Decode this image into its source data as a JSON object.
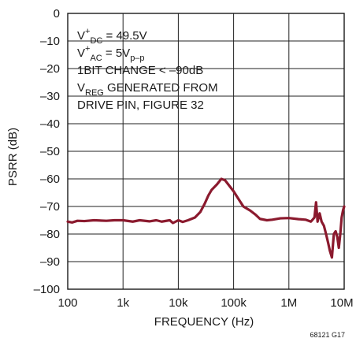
{
  "chart_data": {
    "type": "line",
    "xlabel": "FREQUENCY (Hz)",
    "ylabel": "PSRR (dB)",
    "xscale": "log",
    "xlim": [
      100,
      10000000
    ],
    "ylim": [
      -100,
      0
    ],
    "xticks": [
      100,
      1000,
      10000,
      100000,
      1000000,
      10000000
    ],
    "xtick_labels": [
      "100",
      "1k",
      "10k",
      "100k",
      "1M",
      "10M"
    ],
    "yticks": [
      0,
      -10,
      -20,
      -30,
      -40,
      -50,
      -60,
      -70,
      -80,
      -90,
      -100
    ],
    "ytick_labels": [
      "0",
      "–10",
      "–20",
      "–30",
      "–40",
      "–50",
      "–60",
      "–70",
      "–80",
      "–90",
      "–100"
    ],
    "grid": true,
    "line_color": "#8b1a2e",
    "annotation": {
      "line1": {
        "pre": "V",
        "sup": "+",
        "sub": "DC",
        "post": " = 49.5V"
      },
      "line2": {
        "pre": "V",
        "sup": "+",
        "sub": "AC",
        "post": " = 5V",
        "sub2": "p–p"
      },
      "line3": "1BIT CHANGE < –90dB",
      "line4": {
        "pre": "V",
        "sub": "REG",
        "post": " GENERATED FROM"
      },
      "line5": "DRIVE PIN, FIGURE 32"
    },
    "figure_id": "68121 G17",
    "series": [
      {
        "x": [
          100,
          120,
          150,
          200,
          300,
          500,
          700,
          1000,
          1500,
          2000,
          3000,
          4000,
          5000,
          7000,
          8000,
          10000,
          12000,
          15000,
          20000,
          25000,
          30000,
          35000,
          40000,
          50000,
          60000,
          70000,
          80000,
          100000,
          120000,
          150000,
          200000,
          250000,
          300000,
          400000,
          500000,
          700000,
          1000000,
          1500000,
          2000000,
          2500000,
          2900000,
          3100000,
          3300000,
          3600000,
          3900000,
          4300000,
          4700000,
          5100000,
          5500000,
          6000000,
          6500000,
          7000000,
          7500000,
          8000000,
          8500000,
          9000000,
          9500000,
          10000000
        ],
        "y": [
          -75.5,
          -75.8,
          -75.2,
          -75.3,
          -75.0,
          -75.2,
          -75.0,
          -75.0,
          -75.5,
          -75.0,
          -75.4,
          -75.0,
          -75.5,
          -75.0,
          -76.0,
          -75.0,
          -75.6,
          -75.0,
          -74.0,
          -72.0,
          -69.0,
          -66.0,
          -64.0,
          -62.0,
          -60.0,
          -60.5,
          -62.0,
          -64.5,
          -67.0,
          -70.0,
          -71.5,
          -73.0,
          -74.5,
          -75.0,
          -74.8,
          -74.3,
          -74.2,
          -74.6,
          -74.8,
          -75.5,
          -74.0,
          -68.5,
          -75.5,
          -72.5,
          -75.5,
          -77.0,
          -80.0,
          -83.0,
          -86.0,
          -88.5,
          -80.0,
          -79.0,
          -81.0,
          -85.0,
          -80.0,
          -74.0,
          -71.5,
          -70.0
        ]
      }
    ]
  }
}
